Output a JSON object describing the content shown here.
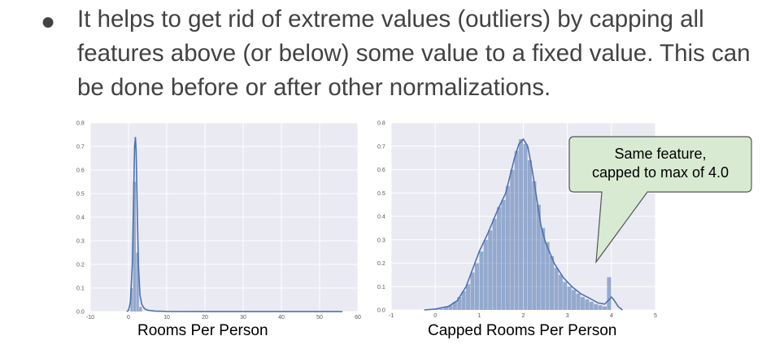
{
  "bullet": {
    "marker": "●",
    "lines": [
      "It helps to get rid of extreme values (outliers) by capping all",
      "features above (or below) some value to a fixed value.  This can",
      "be done before or after other normalizations."
    ]
  },
  "colors": {
    "plot_bg": "#eaeaf2",
    "series": "#4c72b0",
    "callout_bg": "#d9ead3"
  },
  "callout": {
    "line1": "Same feature,",
    "line2": "capped to max of 4.0"
  },
  "chart_data": [
    {
      "type": "bar",
      "xlabel": "Rooms Per Person",
      "xlim": [
        -10,
        60
      ],
      "ylim": [
        0,
        0.8
      ],
      "xticks": [
        -10,
        0,
        10,
        20,
        30,
        40,
        50,
        60
      ],
      "yticks": [
        0.0,
        0.1,
        0.2,
        0.3,
        0.4,
        0.5,
        0.6,
        0.7,
        0.8
      ],
      "grid": true,
      "bins": [
        {
          "x0": 0.5,
          "x1": 1.2,
          "value": 0.1
        },
        {
          "x0": 1.2,
          "x1": 2.0,
          "value": 0.55
        },
        {
          "x0": 2.0,
          "x1": 2.8,
          "value": 0.25
        },
        {
          "x0": 2.8,
          "x1": 3.6,
          "value": 0.02
        }
      ],
      "kde": [
        [
          -0.5,
          0
        ],
        [
          0,
          0.005
        ],
        [
          0.5,
          0.04
        ],
        [
          1,
          0.2
        ],
        [
          1.3,
          0.45
        ],
        [
          1.6,
          0.7
        ],
        [
          1.8,
          0.74
        ],
        [
          2,
          0.68
        ],
        [
          2.3,
          0.42
        ],
        [
          2.6,
          0.2
        ],
        [
          3,
          0.07
        ],
        [
          3.5,
          0.03
        ],
        [
          4.2,
          0.012
        ],
        [
          5,
          0.006
        ],
        [
          7,
          0.002
        ],
        [
          10,
          0.0008
        ],
        [
          20,
          0.0003
        ],
        [
          55,
          0.0003
        ],
        [
          56,
          0
        ]
      ]
    },
    {
      "type": "bar",
      "xlabel": "Capped Rooms Per Person",
      "xlim": [
        -1,
        5
      ],
      "ylim": [
        0,
        0.8
      ],
      "xticks": [
        -1,
        0,
        1,
        2,
        3,
        4,
        5
      ],
      "yticks": [
        0.0,
        0.1,
        0.2,
        0.3,
        0.4,
        0.5,
        0.6,
        0.7,
        0.8
      ],
      "grid": true,
      "bins": [
        {
          "x0": 0.0,
          "x1": 0.1,
          "value": 0.002
        },
        {
          "x0": 0.1,
          "x1": 0.2,
          "value": 0.005
        },
        {
          "x0": 0.2,
          "x1": 0.3,
          "value": 0.012
        },
        {
          "x0": 0.3,
          "x1": 0.4,
          "value": 0.02
        },
        {
          "x0": 0.4,
          "x1": 0.5,
          "value": 0.035
        },
        {
          "x0": 0.5,
          "x1": 0.6,
          "value": 0.055
        },
        {
          "x0": 0.6,
          "x1": 0.7,
          "value": 0.08
        },
        {
          "x0": 0.7,
          "x1": 0.8,
          "value": 0.11
        },
        {
          "x0": 0.8,
          "x1": 0.9,
          "value": 0.16
        },
        {
          "x0": 0.9,
          "x1": 1.0,
          "value": 0.2
        },
        {
          "x0": 1.0,
          "x1": 1.1,
          "value": 0.25
        },
        {
          "x0": 1.1,
          "x1": 1.2,
          "value": 0.3
        },
        {
          "x0": 1.2,
          "x1": 1.3,
          "value": 0.34
        },
        {
          "x0": 1.3,
          "x1": 1.4,
          "value": 0.39
        },
        {
          "x0": 1.4,
          "x1": 1.5,
          "value": 0.44
        },
        {
          "x0": 1.5,
          "x1": 1.6,
          "value": 0.47
        },
        {
          "x0": 1.6,
          "x1": 1.7,
          "value": 0.53
        },
        {
          "x0": 1.7,
          "x1": 1.8,
          "value": 0.6
        },
        {
          "x0": 1.8,
          "x1": 1.9,
          "value": 0.68
        },
        {
          "x0": 1.9,
          "x1": 2.0,
          "value": 0.73
        },
        {
          "x0": 2.0,
          "x1": 2.1,
          "value": 0.71
        },
        {
          "x0": 2.1,
          "x1": 2.2,
          "value": 0.64
        },
        {
          "x0": 2.2,
          "x1": 2.3,
          "value": 0.55
        },
        {
          "x0": 2.3,
          "x1": 2.4,
          "value": 0.45
        },
        {
          "x0": 2.4,
          "x1": 2.5,
          "value": 0.35
        },
        {
          "x0": 2.5,
          "x1": 2.6,
          "value": 0.29
        },
        {
          "x0": 2.6,
          "x1": 2.7,
          "value": 0.23
        },
        {
          "x0": 2.7,
          "x1": 2.8,
          "value": 0.18
        },
        {
          "x0": 2.8,
          "x1": 2.9,
          "value": 0.15
        },
        {
          "x0": 2.9,
          "x1": 3.0,
          "value": 0.12
        },
        {
          "x0": 3.0,
          "x1": 3.1,
          "value": 0.1
        },
        {
          "x0": 3.1,
          "x1": 3.2,
          "value": 0.085
        },
        {
          "x0": 3.2,
          "x1": 3.3,
          "value": 0.07
        },
        {
          "x0": 3.3,
          "x1": 3.4,
          "value": 0.055
        },
        {
          "x0": 3.4,
          "x1": 3.5,
          "value": 0.045
        },
        {
          "x0": 3.5,
          "x1": 3.6,
          "value": 0.035
        },
        {
          "x0": 3.6,
          "x1": 3.7,
          "value": 0.025
        },
        {
          "x0": 3.7,
          "x1": 3.8,
          "value": 0.02
        },
        {
          "x0": 3.8,
          "x1": 3.9,
          "value": 0.015
        },
        {
          "x0": 3.9,
          "x1": 4.0,
          "value": 0.14
        }
      ],
      "kde": [
        [
          -0.25,
          0
        ],
        [
          0,
          0.004
        ],
        [
          0.3,
          0.015
        ],
        [
          0.5,
          0.04
        ],
        [
          0.7,
          0.1
        ],
        [
          0.8,
          0.15
        ],
        [
          1,
          0.25
        ],
        [
          1.2,
          0.33
        ],
        [
          1.4,
          0.42
        ],
        [
          1.6,
          0.5
        ],
        [
          1.8,
          0.65
        ],
        [
          1.9,
          0.71
        ],
        [
          2,
          0.73
        ],
        [
          2.1,
          0.7
        ],
        [
          2.2,
          0.6
        ],
        [
          2.3,
          0.48
        ],
        [
          2.4,
          0.36
        ],
        [
          2.5,
          0.29
        ],
        [
          2.7,
          0.2
        ],
        [
          2.9,
          0.14
        ],
        [
          3.1,
          0.1
        ],
        [
          3.3,
          0.07
        ],
        [
          3.5,
          0.05
        ],
        [
          3.7,
          0.03
        ],
        [
          3.85,
          0.025
        ],
        [
          3.95,
          0.045
        ],
        [
          4.0,
          0.055
        ],
        [
          4.05,
          0.045
        ],
        [
          4.15,
          0.015
        ],
        [
          4.25,
          0
        ]
      ]
    }
  ]
}
